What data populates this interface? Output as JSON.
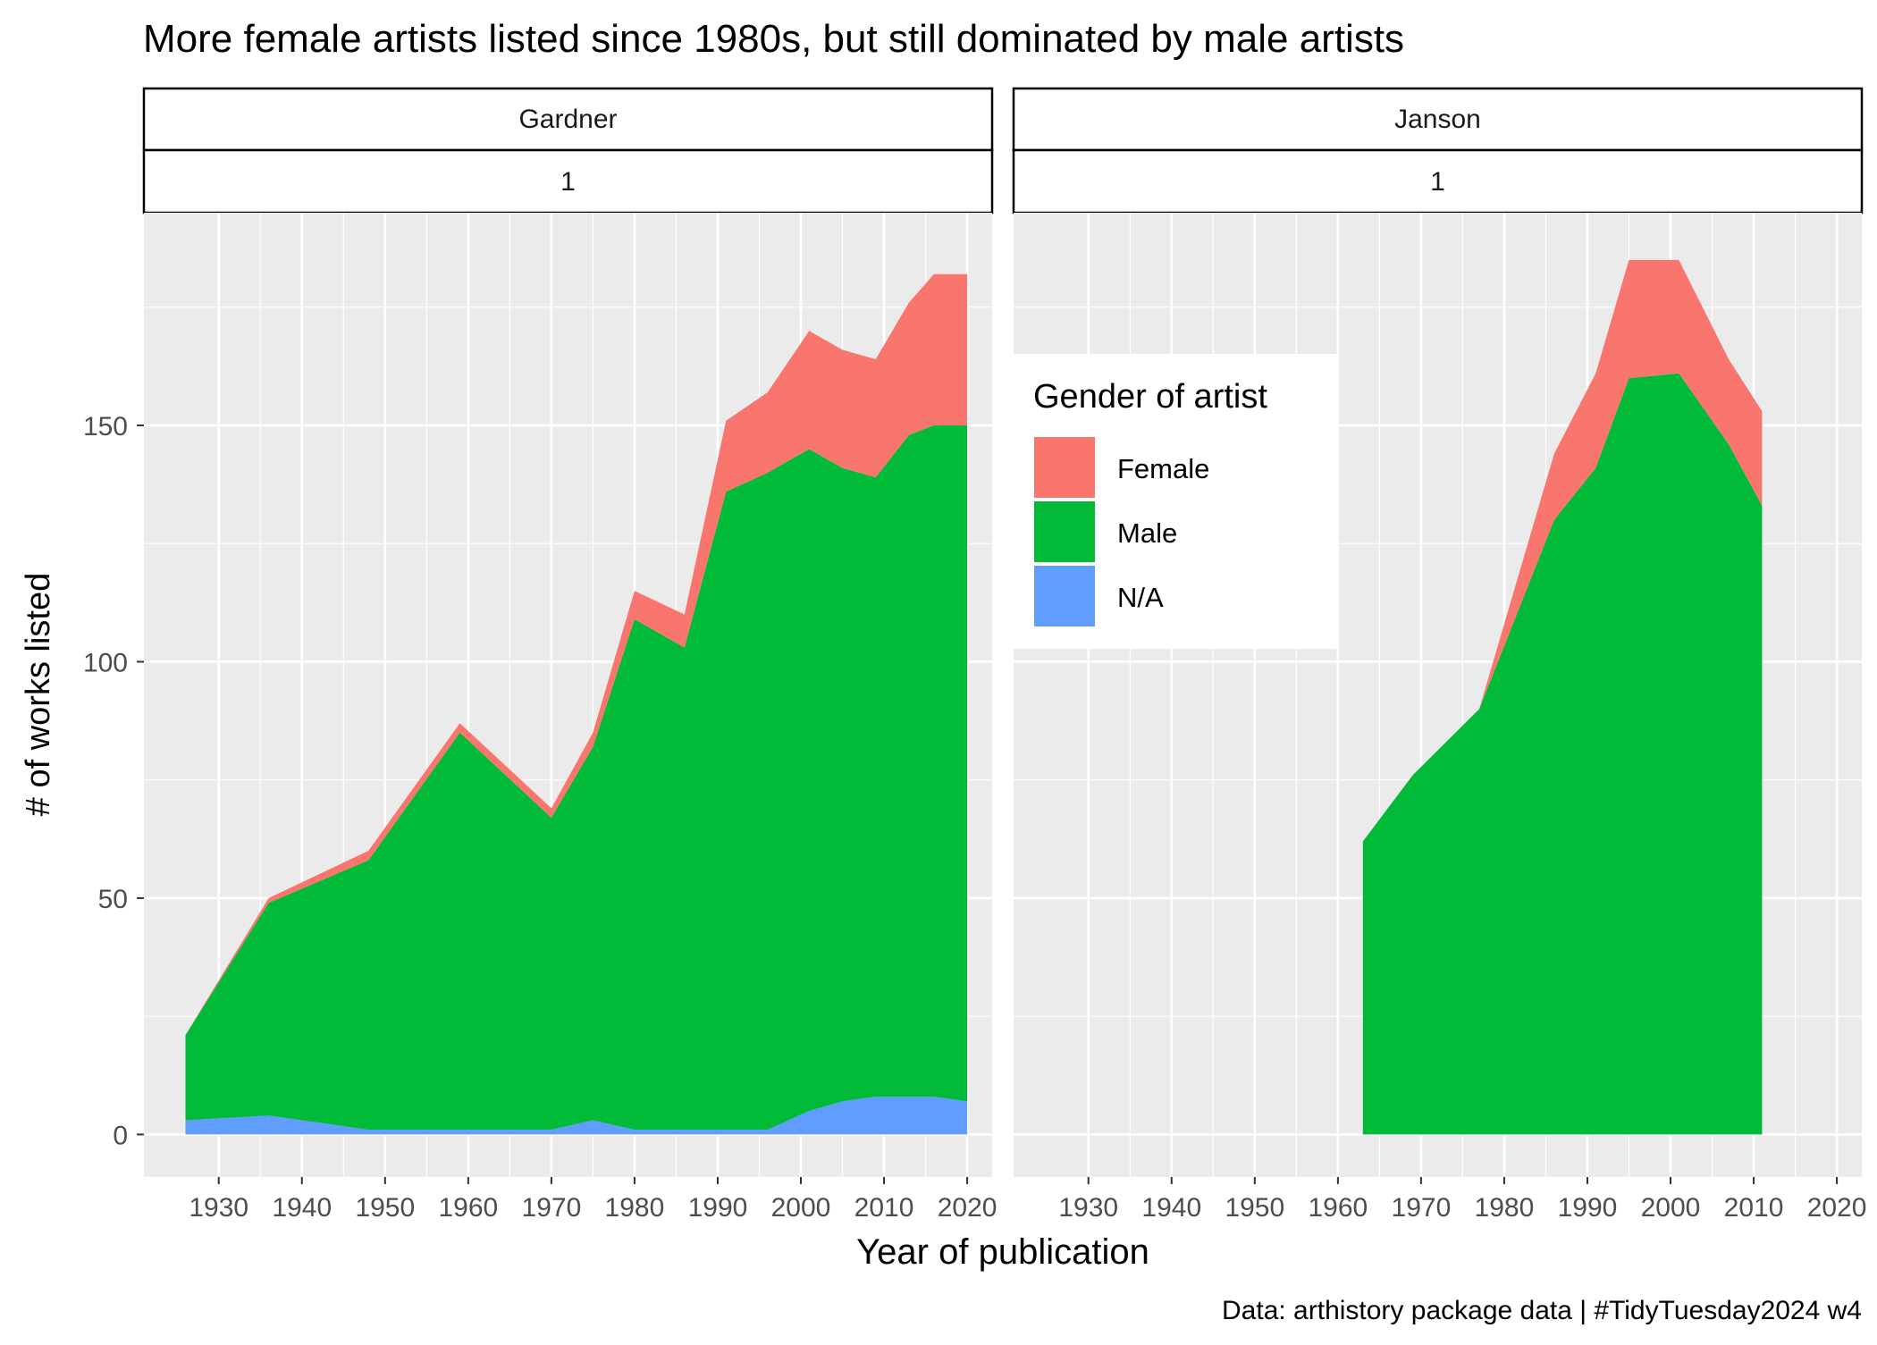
{
  "chart_data": {
    "type": "area",
    "stacked": true,
    "title": "More female artists listed since 1980s, but still dominated by male artists",
    "xlabel": "Year of publication",
    "ylabel": "# of works listed",
    "caption": "Data: arthistory package data | #TidyTuesday2024 w4",
    "xlim": [
      1921,
      2023
    ],
    "ylim": [
      -9,
      195
    ],
    "x_ticks": [
      1930,
      1940,
      1950,
      1960,
      1970,
      1980,
      1990,
      2000,
      2010,
      2020
    ],
    "y_ticks": [
      0,
      50,
      100,
      150
    ],
    "grid": true,
    "legend": {
      "title": "Gender of artist",
      "position": "inside, between panels",
      "entries": [
        {
          "name": "Female",
          "color": "#F8766D"
        },
        {
          "name": "Male",
          "color": "#00BA38"
        },
        {
          "name": "N/A",
          "color": "#619CFF"
        }
      ]
    },
    "colors": {
      "panel_bg": "#EBEBEB",
      "grid": "#FFFFFF",
      "tick_text": "#4D4D4D"
    },
    "panels": [
      {
        "strip_labels": [
          "Gardner",
          "1"
        ],
        "x": [
          1926,
          1936,
          1948,
          1959,
          1970,
          1975,
          1980,
          1986,
          1991,
          1996,
          2001,
          2005,
          2009,
          2013,
          2016,
          2020
        ],
        "series": [
          {
            "name": "N/A",
            "values": [
              3,
              4,
              1,
              1,
              1,
              3,
              1,
              1,
              1,
              1,
              5,
              7,
              8,
              8,
              8,
              7
            ]
          },
          {
            "name": "Male",
            "values": [
              18,
              45,
              57,
              84,
              66,
              79,
              108,
              102,
              135,
              139,
              140,
              134,
              131,
              140,
              142,
              143
            ]
          },
          {
            "name": "Female",
            "values": [
              0,
              1,
              2,
              2,
              2,
              3,
              6,
              7,
              15,
              17,
              25,
              25,
              25,
              28,
              32,
              32
            ]
          }
        ]
      },
      {
        "strip_labels": [
          "Janson",
          "1"
        ],
        "x": [
          1963,
          1969,
          1977,
          1986,
          1991,
          1995,
          2001,
          2007,
          2011
        ],
        "series": [
          {
            "name": "N/A",
            "values": [
              0,
              0,
              0,
              0,
              0,
              0,
              0,
              0,
              0
            ]
          },
          {
            "name": "Male",
            "values": [
              62,
              76,
              90,
              130,
              141,
              160,
              161,
              146,
              133
            ]
          },
          {
            "name": "Female",
            "values": [
              0,
              0,
              0,
              14,
              20,
              25,
              24,
              18,
              20
            ]
          }
        ]
      }
    ]
  }
}
